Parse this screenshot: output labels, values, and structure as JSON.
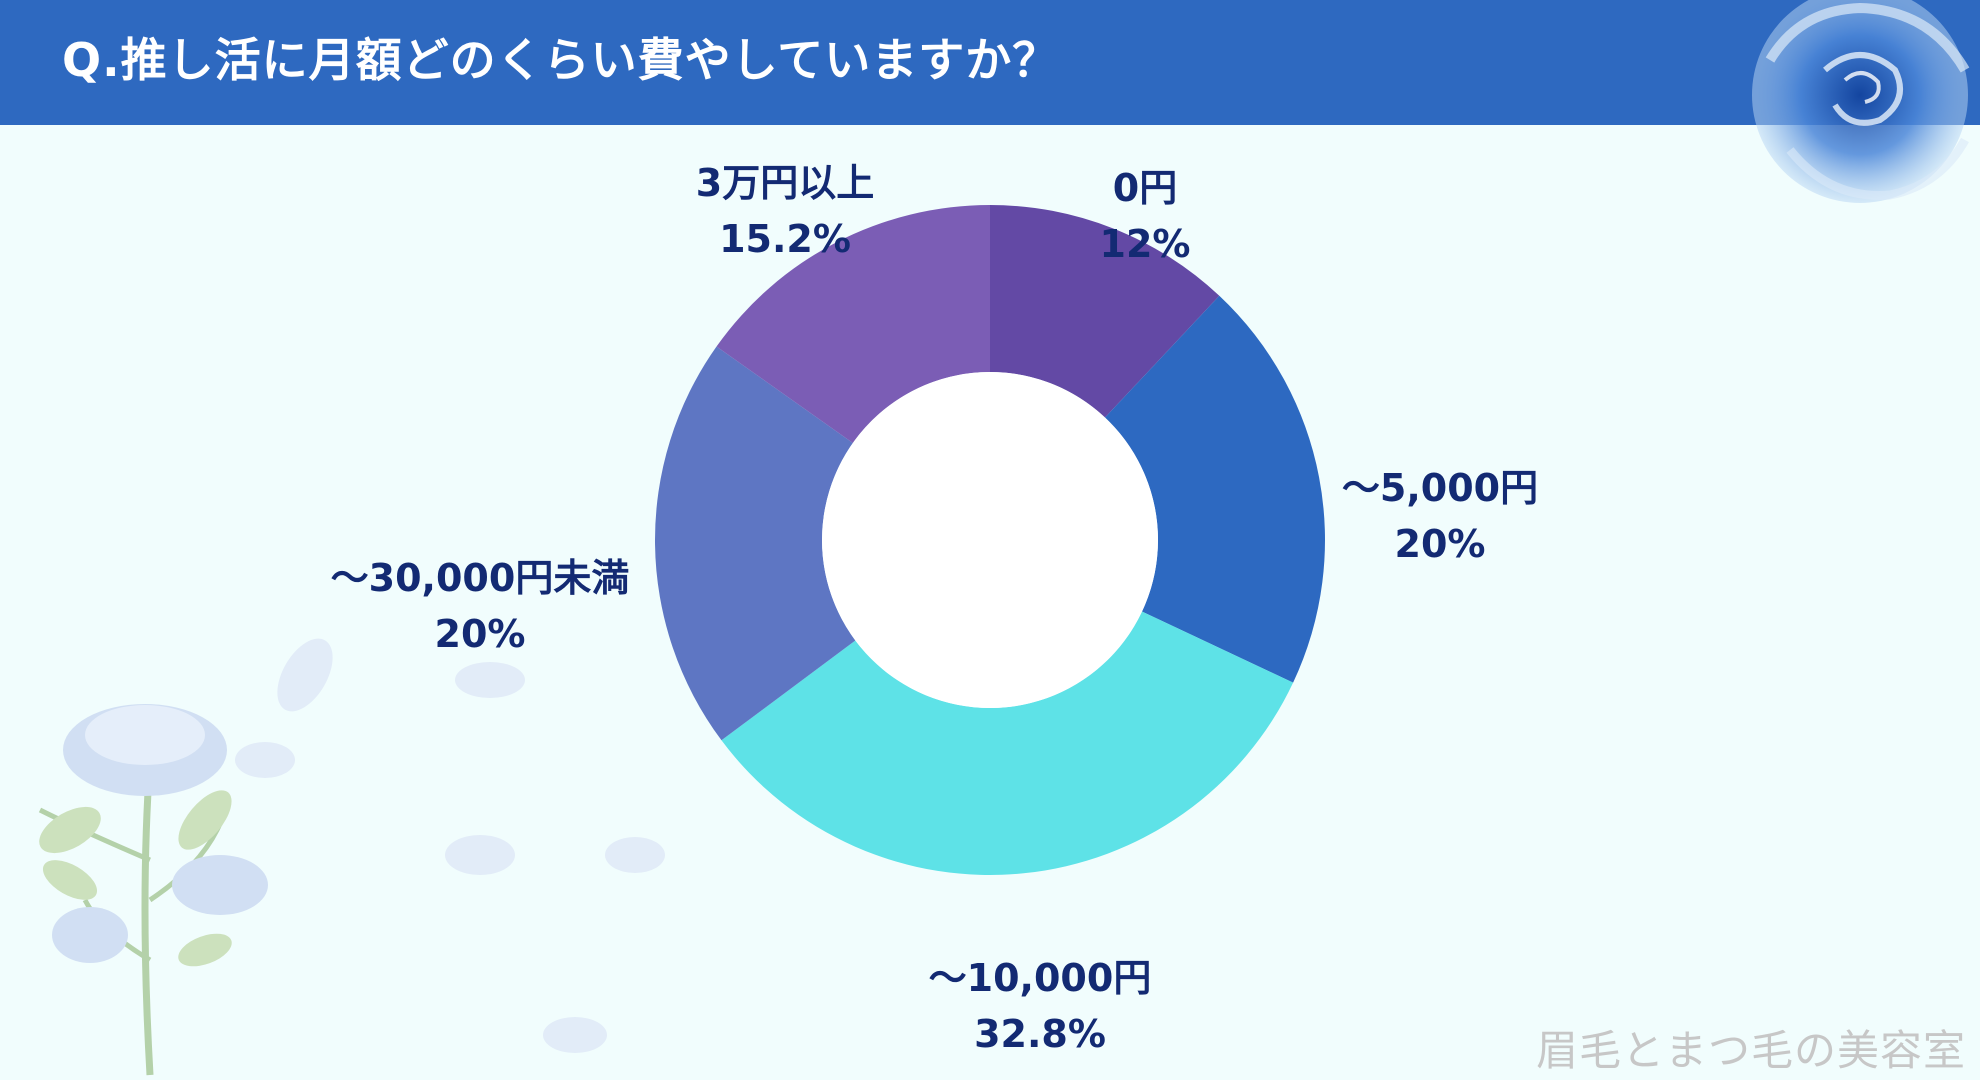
{
  "header": {
    "title": "Q.推し活に月額どのくらい費やしていますか？",
    "background": "#2e69c0"
  },
  "watermark": "眉毛とまつ毛の美容室",
  "chart_data": {
    "type": "pie",
    "variant": "donut",
    "title": "",
    "slices": [
      {
        "label": "0円",
        "value": 12,
        "value_label": "12%",
        "color": "#6349a5"
      },
      {
        "label": "～5,000円",
        "value": 20,
        "value_label": "20%",
        "color": "#2d69c1"
      },
      {
        "label": "～10,000円",
        "value": 32.8,
        "value_label": "32.8%",
        "color": "#5ee2e7"
      },
      {
        "label": "～30,000円未満",
        "value": 20,
        "value_label": "20%",
        "color": "#5e76c3"
      },
      {
        "label": "3万円以上",
        "value": 15.2,
        "value_label": "15.2%",
        "color": "#7b5db5"
      }
    ],
    "start_angle": "12 o'clock",
    "direction": "clockwise",
    "legend": "none (labels beside slices)"
  }
}
